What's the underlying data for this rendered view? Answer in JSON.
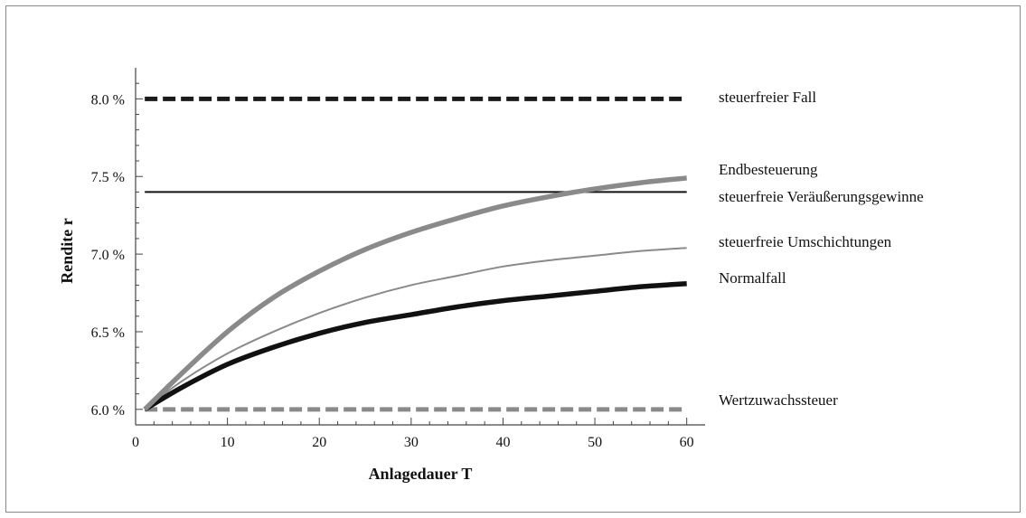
{
  "chart_data": {
    "type": "line",
    "title": "",
    "xlabel": "Anlagedauer T",
    "ylabel": "Rendite  r",
    "xlim": [
      0,
      62
    ],
    "ylim": [
      5.9,
      8.2
    ],
    "xticks": [
      0,
      10,
      20,
      30,
      40,
      50,
      60
    ],
    "xtick_labels": [
      "0",
      "10",
      "20",
      "30",
      "40",
      "50",
      "60"
    ],
    "yticks": [
      6.0,
      6.5,
      7.0,
      7.5,
      8.0
    ],
    "ytick_labels": [
      "6.0 %",
      "6.5 %",
      "7.0 %",
      "7.5 %",
      "8.0 %"
    ],
    "grid": false,
    "series": [
      {
        "name": "steuerfreier Fall",
        "color": "#1a1a1a",
        "style": "dashed",
        "x": [
          1,
          60
        ],
        "y": [
          8.0,
          8.0
        ]
      },
      {
        "name": "Endbesteuerung",
        "color": "#8a8a8a",
        "style": "solid-thick",
        "x": [
          1,
          5,
          10,
          15,
          20,
          25,
          30,
          35,
          40,
          45,
          50,
          55,
          60
        ],
        "y": [
          6.0,
          6.23,
          6.5,
          6.72,
          6.89,
          7.03,
          7.14,
          7.23,
          7.31,
          7.37,
          7.42,
          7.46,
          7.49
        ]
      },
      {
        "name": "steuerfreie Veräußerungsgewinne",
        "color": "#111111",
        "style": "solid-thin",
        "x": [
          1,
          60
        ],
        "y": [
          7.4,
          7.4
        ]
      },
      {
        "name": "steuerfreie Umschichtungen",
        "color": "#8a8a8a",
        "style": "solid-thin",
        "x": [
          1,
          5,
          10,
          15,
          20,
          25,
          30,
          35,
          40,
          45,
          50,
          55,
          60
        ],
        "y": [
          6.0,
          6.18,
          6.36,
          6.5,
          6.62,
          6.72,
          6.8,
          6.86,
          6.92,
          6.96,
          6.99,
          7.02,
          7.04
        ]
      },
      {
        "name": "Normalfall",
        "color": "#111111",
        "style": "solid-thick",
        "x": [
          1,
          5,
          10,
          15,
          20,
          25,
          30,
          35,
          40,
          45,
          50,
          55,
          60
        ],
        "y": [
          6.0,
          6.14,
          6.29,
          6.4,
          6.49,
          6.56,
          6.61,
          6.66,
          6.7,
          6.73,
          6.76,
          6.79,
          6.81
        ]
      },
      {
        "name": "Wertzuwachssteuer",
        "color": "#8a8a8a",
        "style": "dashed",
        "x": [
          1,
          60
        ],
        "y": [
          6.0,
          6.0
        ]
      }
    ]
  }
}
